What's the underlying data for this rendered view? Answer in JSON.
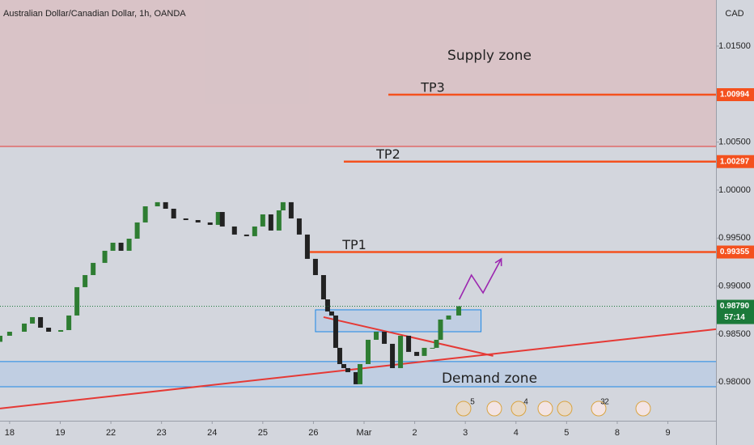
{
  "chart_data": {
    "type": "candlestick",
    "title": "Australian Dollar/Canadian Dollar, 1h, OANDA",
    "currency": "CAD",
    "x": [
      -0.19,
      0,
      0.29,
      0.45,
      0.61,
      0.77,
      1.01,
      1.17,
      1.33,
      1.49,
      1.65,
      1.88,
      2.04,
      2.2,
      2.36,
      2.52,
      2.68,
      2.92,
      3.08,
      3.24,
      3.48,
      3.72,
      3.96,
      4.12,
      4.2,
      4.44,
      4.68,
      4.84,
      5,
      5.16,
      5.32,
      5.4,
      5.56,
      5.72,
      5.88,
      6.04,
      6.2,
      6.28,
      6.36,
      6.44,
      6.52,
      6.6,
      6.68,
      6.84,
      6.92,
      7.08,
      7.24,
      7.4,
      7.56,
      7.72,
      7.88,
      8.04,
      8.19,
      8.35,
      8.43,
      8.51,
      8.67,
      8.87
    ],
    "open": [
      0.9842,
      0.98483,
      0.98525,
      0.9861,
      0.98677,
      0.98567,
      0.98525,
      0.98542,
      0.98694,
      0.98989,
      0.99115,
      0.99242,
      0.99368,
      0.99452,
      0.99368,
      0.99494,
      0.99663,
      0.99831,
      0.99874,
      0.99806,
      0.99705,
      0.99688,
      0.99663,
      0.99638,
      0.99772,
      0.99621,
      0.99537,
      0.9952,
      0.99621,
      0.99747,
      0.99579,
      0.99789,
      0.99874,
      0.99705,
      0.99537,
      0.99284,
      0.99115,
      0.98862,
      0.98736,
      0.98694,
      0.98357,
      0.98188,
      0.98146,
      0.98104,
      0.97978,
      0.98188,
      0.98441,
      0.98525,
      0.98399,
      0.98146,
      0.98483,
      0.98315,
      0.98273,
      0.98357,
      0.98357,
      0.98441,
      0.98652,
      0.98694
    ],
    "close": [
      0.98483,
      0.98525,
      0.9861,
      0.98677,
      0.98567,
      0.98525,
      0.98542,
      0.98694,
      0.98989,
      0.99115,
      0.99242,
      0.99368,
      0.99452,
      0.99368,
      0.99494,
      0.99663,
      0.99831,
      0.99874,
      0.99806,
      0.99705,
      0.99688,
      0.99663,
      0.99638,
      0.99772,
      0.99621,
      0.99537,
      0.9952,
      0.99621,
      0.99747,
      0.99579,
      0.99789,
      0.99874,
      0.99705,
      0.99537,
      0.99284,
      0.99115,
      0.98862,
      0.98736,
      0.98694,
      0.98357,
      0.98188,
      0.98146,
      0.98104,
      0.97978,
      0.98188,
      0.98441,
      0.98525,
      0.98399,
      0.98146,
      0.98483,
      0.98315,
      0.98273,
      0.98357,
      0.98357,
      0.98441,
      0.98652,
      0.98694,
      0.9879
    ],
    "up_color": "#2e7d32",
    "down_color": "#222222",
    "xlim": [
      -0.19,
      13.95
    ],
    "ylim": [
      0.97598,
      1.0198
    ],
    "xticks": [
      {
        "value": 0,
        "label": "18"
      },
      {
        "value": 1,
        "label": "19"
      },
      {
        "value": 2,
        "label": "22"
      },
      {
        "value": 3,
        "label": "23"
      },
      {
        "value": 4,
        "label": "24"
      },
      {
        "value": 5,
        "label": "25"
      },
      {
        "value": 6,
        "label": "26"
      },
      {
        "value": 7,
        "label": "Mar"
      },
      {
        "value": 8,
        "label": "2"
      },
      {
        "value": 9,
        "label": "3"
      },
      {
        "value": 10,
        "label": "4"
      },
      {
        "value": 11,
        "label": "5"
      },
      {
        "value": 12,
        "label": "8"
      },
      {
        "value": 13,
        "label": "9"
      }
    ],
    "yticks": [
      {
        "value": 1.015,
        "label": "1.01500"
      },
      {
        "value": 1.005,
        "label": "1.00500"
      },
      {
        "value": 1.0,
        "label": "1.00000"
      },
      {
        "value": 0.995,
        "label": "0.99500"
      },
      {
        "value": 0.99,
        "label": "0.99000"
      },
      {
        "value": 0.985,
        "label": "0.98500"
      },
      {
        "value": 0.98,
        "label": "0.98000"
      }
    ],
    "levels": [
      {
        "name": "TP3",
        "value": 1.00994,
        "x_start": 7.48
      },
      {
        "name": "TP2",
        "value": 1.00297,
        "x_start": 6.6
      },
      {
        "name": "TP1",
        "value": 0.99355,
        "x_start": 5.93
      }
    ],
    "level_color": "#f4511e",
    "current_price": {
      "value": 0.9879,
      "label": "0.98790",
      "countdown": "57:14",
      "color": "#1b7a3a"
    },
    "zones": [
      {
        "name": "Supply zone",
        "low": 1.00455,
        "high": 1.0198,
        "fill": "#d9c0c3",
        "border": "#e53935"
      },
      {
        "name": "Demand zone",
        "low": 0.97952,
        "high": 0.98214,
        "fill": "#bccde3",
        "border": "#1e88e5"
      }
    ],
    "box": {
      "x_start": 6.04,
      "x_end": 9.31,
      "low": 0.98525,
      "high": 0.98753,
      "fill": "#bccde3",
      "border": "#1e88e5"
    },
    "trendlines": [
      {
        "x": [
          -0.19,
          13.95
        ],
        "y": [
          0.97725,
          0.98551
        ],
        "color": "#e53935"
      },
      {
        "x": [
          6.2,
          9.55
        ],
        "y": [
          0.98677,
          0.98273
        ],
        "color": "#e53935"
      }
    ],
    "projection": {
      "x": [
        8.88,
        9.12,
        9.35,
        9.71
      ],
      "y": [
        0.98862,
        0.99115,
        0.9893,
        0.99284
      ],
      "color": "#9c27b0"
    },
    "event_badges": [
      "5",
      "4",
      "3",
      "2"
    ]
  }
}
